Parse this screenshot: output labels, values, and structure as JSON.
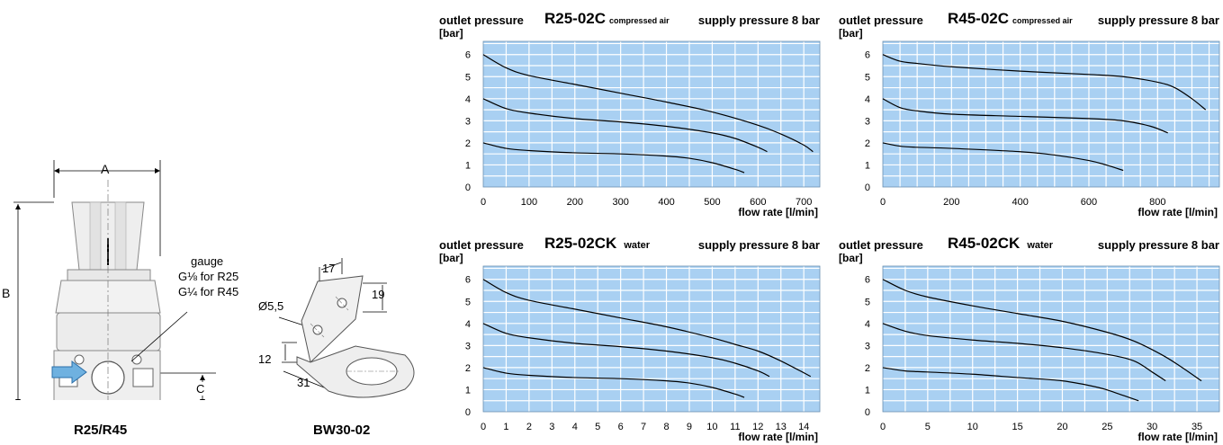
{
  "drawings": {
    "regulator": {
      "dim_a": "A",
      "dim_b": "B",
      "dim_c": "C",
      "gauge_title": "gauge",
      "gauge_r25": "G⅛ for R25",
      "gauge_r45": "G¼ for R45",
      "caption": "R25/R45"
    },
    "bracket": {
      "dim_hole": "Ø5,5",
      "dim_17": "17",
      "dim_19": "19",
      "dim_12": "12",
      "dim_31": "31",
      "caption": "BW30-02"
    }
  },
  "colors": {
    "plot_bg": "#a9d0f2",
    "grid": "#ffffff",
    "line": "#000000",
    "arrow": "#6fb1e0"
  },
  "chart_data": [
    {
      "type": "line",
      "title_left": "outlet pressure",
      "model": "R25-02C",
      "medium": "compressed air",
      "supply": "supply pressure 8 bar",
      "ylabel": "[bar]",
      "xlabel": "flow rate [l/min]",
      "xlim": [
        0,
        735
      ],
      "ylim": [
        0,
        6.6
      ],
      "x_ticks": [
        0,
        100,
        200,
        300,
        400,
        500,
        600,
        700
      ],
      "y_ticks": [
        0,
        1,
        2,
        3,
        4,
        5,
        6
      ],
      "x_minor": 50,
      "grid": true,
      "series": [
        {
          "x": [
            0,
            50,
            100,
            200,
            300,
            400,
            500,
            600,
            650,
            700,
            720
          ],
          "y": [
            6.0,
            5.4,
            5.05,
            4.65,
            4.25,
            3.85,
            3.4,
            2.8,
            2.4,
            1.9,
            1.6
          ]
        },
        {
          "x": [
            0,
            50,
            100,
            200,
            300,
            400,
            500,
            550,
            600,
            620
          ],
          "y": [
            4.0,
            3.55,
            3.35,
            3.1,
            2.95,
            2.75,
            2.45,
            2.2,
            1.8,
            1.6
          ]
        },
        {
          "x": [
            0,
            50,
            100,
            200,
            300,
            400,
            450,
            500,
            550,
            570
          ],
          "y": [
            2.0,
            1.75,
            1.65,
            1.55,
            1.5,
            1.4,
            1.3,
            1.1,
            0.8,
            0.65
          ]
        }
      ]
    },
    {
      "type": "line",
      "title_left": "outlet pressure",
      "model": "R45-02C",
      "medium": "compressed air",
      "supply": "supply pressure 8 bar",
      "ylabel": "[bar]",
      "xlabel": "flow rate [l/min]",
      "xlim": [
        0,
        980
      ],
      "ylim": [
        0,
        6.6
      ],
      "x_ticks": [
        0,
        200,
        400,
        600,
        800
      ],
      "x_tick_labels": [
        "0",
        "200",
        "400",
        "600",
        "800"
      ],
      "y_ticks": [
        0,
        1,
        2,
        3,
        4,
        5,
        6
      ],
      "x_minor": 50,
      "grid": true,
      "series": [
        {
          "x": [
            0,
            50,
            100,
            200,
            400,
            600,
            700,
            800,
            850,
            900,
            940
          ],
          "y": [
            6.0,
            5.7,
            5.6,
            5.45,
            5.25,
            5.1,
            5.0,
            4.75,
            4.5,
            4.0,
            3.5
          ]
        },
        {
          "x": [
            0,
            50,
            100,
            200,
            400,
            600,
            700,
            780,
            830
          ],
          "y": [
            4.0,
            3.6,
            3.45,
            3.3,
            3.2,
            3.1,
            3.0,
            2.75,
            2.45
          ]
        },
        {
          "x": [
            0,
            50,
            100,
            200,
            400,
            500,
            600,
            650,
            700
          ],
          "y": [
            2.0,
            1.85,
            1.8,
            1.75,
            1.6,
            1.45,
            1.2,
            1.0,
            0.75
          ]
        }
      ]
    },
    {
      "type": "line",
      "title_left": "outlet pressure",
      "model": "R25-02CK",
      "medium": "water",
      "supply": "supply pressure 8 bar",
      "ylabel": "[bar]",
      "xlabel": "flow rate [l/min]",
      "xlim": [
        0,
        14.7
      ],
      "ylim": [
        0,
        6.6
      ],
      "x_ticks": [
        0,
        1,
        2,
        3,
        4,
        5,
        6,
        7,
        8,
        9,
        10,
        11,
        12,
        13,
        14
      ],
      "y_ticks": [
        0,
        1,
        2,
        3,
        4,
        5,
        6
      ],
      "x_minor": 1,
      "grid": true,
      "series": [
        {
          "x": [
            0,
            1,
            2,
            4,
            6,
            8,
            10,
            11,
            12,
            13,
            14.3
          ],
          "y": [
            6.0,
            5.4,
            5.05,
            4.65,
            4.25,
            3.85,
            3.35,
            3.05,
            2.75,
            2.3,
            1.6
          ]
        },
        {
          "x": [
            0,
            1,
            2,
            4,
            6,
            8,
            10,
            11,
            12,
            12.5
          ],
          "y": [
            4.0,
            3.55,
            3.35,
            3.1,
            2.95,
            2.75,
            2.45,
            2.2,
            1.85,
            1.6
          ]
        },
        {
          "x": [
            0,
            1,
            2,
            4,
            6,
            8,
            9,
            10,
            11,
            11.4
          ],
          "y": [
            2.0,
            1.75,
            1.65,
            1.55,
            1.5,
            1.4,
            1.3,
            1.1,
            0.8,
            0.65
          ]
        }
      ]
    },
    {
      "type": "line",
      "title_left": "outlet pressure",
      "model": "R45-02CK",
      "medium": "water",
      "supply": "supply pressure 8 bar",
      "ylabel": "[bar]",
      "xlabel": "flow rate [l/min]",
      "xlim": [
        0,
        37.5
      ],
      "ylim": [
        0,
        6.6
      ],
      "x_ticks": [
        0,
        5,
        10,
        15,
        20,
        25,
        30,
        35
      ],
      "y_ticks": [
        0,
        1,
        2,
        3,
        4,
        5,
        6
      ],
      "x_minor": 2.5,
      "grid": true,
      "series": [
        {
          "x": [
            0,
            2.5,
            5,
            10,
            15,
            20,
            25,
            28,
            31,
            33,
            35.5
          ],
          "y": [
            6.0,
            5.5,
            5.2,
            4.8,
            4.45,
            4.1,
            3.6,
            3.2,
            2.6,
            2.1,
            1.4
          ]
        },
        {
          "x": [
            0,
            2.5,
            5,
            10,
            15,
            20,
            25,
            28,
            30,
            31.5
          ],
          "y": [
            4.0,
            3.65,
            3.45,
            3.25,
            3.1,
            2.9,
            2.6,
            2.3,
            1.8,
            1.4
          ]
        },
        {
          "x": [
            0,
            2.5,
            5,
            10,
            15,
            20,
            24,
            26,
            28.5
          ],
          "y": [
            2.0,
            1.85,
            1.8,
            1.7,
            1.55,
            1.4,
            1.1,
            0.85,
            0.5
          ]
        }
      ]
    }
  ]
}
